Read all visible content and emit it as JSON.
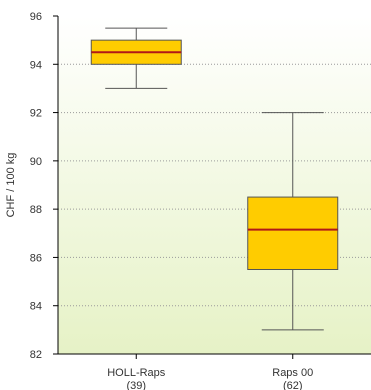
{
  "chart_data": {
    "type": "box",
    "ylabel": "CHF / 100 kg",
    "ylim": [
      82,
      96
    ],
    "yticks": [
      82,
      84,
      86,
      88,
      90,
      92,
      94,
      96
    ],
    "grid": "horizontal dotted",
    "categories": [
      {
        "label": "HOLL-Raps",
        "count": "(39)"
      },
      {
        "label": "Raps 00",
        "count": "(62)"
      }
    ],
    "boxes": [
      {
        "name": "HOLL-Raps",
        "whisker_low": 93.0,
        "q1": 94.0,
        "median": 94.5,
        "q3": 95.0,
        "whisker_high": 95.5
      },
      {
        "name": "Raps 00",
        "whisker_low": 83.0,
        "q1": 85.5,
        "median": 87.15,
        "q3": 88.5,
        "whisker_high": 92.0
      }
    ],
    "colors": {
      "box_fill": "#ffcc00",
      "box_stroke": "#555555",
      "median": "#b01818",
      "grid": "#9a9a9a",
      "plot_bg_top": "#ffffff",
      "plot_bg_bottom": "#e6f2c6"
    }
  }
}
